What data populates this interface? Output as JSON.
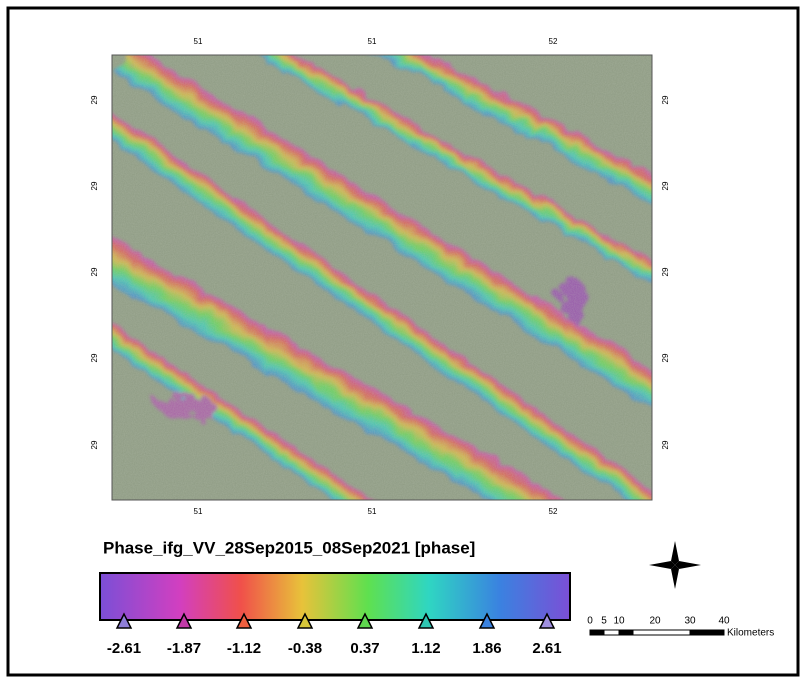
{
  "map": {
    "top_labels": [
      51,
      51,
      52
    ],
    "bottom_labels": [
      51,
      51,
      52
    ],
    "left_labels": [
      29,
      29,
      29,
      29,
      29
    ],
    "right_labels": [
      29,
      29,
      29,
      29,
      29
    ]
  },
  "legend": {
    "title": "Phase_ifg_VV_28Sep2015_08Sep2021 [phase]",
    "labels": [
      -2.61,
      -1.87,
      -1.12,
      -0.38,
      0.37,
      1.12,
      1.86,
      2.61
    ]
  },
  "scale_bar": {
    "labels": [
      0,
      5,
      10,
      20,
      30,
      40
    ],
    "unit": "Kilometers"
  }
}
